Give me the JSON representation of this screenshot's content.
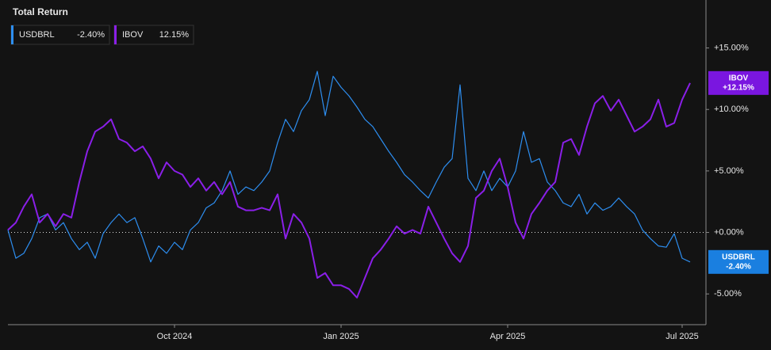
{
  "chart_data": {
    "type": "line",
    "title": "Total Return",
    "categories": [
      null,
      null,
      null,
      null,
      null,
      null,
      null,
      null,
      null,
      null,
      null,
      null,
      null,
      null,
      null,
      null,
      null,
      null,
      null,
      null,
      null,
      "Oct 2024",
      null,
      null,
      null,
      null,
      null,
      null,
      null,
      null,
      null,
      null,
      null,
      null,
      null,
      null,
      null,
      null,
      null,
      null,
      null,
      null,
      "Jan 2025",
      null,
      null,
      null,
      null,
      null,
      null,
      null,
      null,
      null,
      null,
      null,
      null,
      null,
      null,
      null,
      null,
      null,
      null,
      null,
      null,
      "Apr 2025",
      null,
      null,
      null,
      null,
      null,
      null,
      null,
      null,
      null,
      null,
      null,
      null,
      null,
      null,
      null,
      null,
      null,
      null,
      null,
      null,
      null,
      "Jul 2025",
      null
    ],
    "series": [
      {
        "name": "USDBRL",
        "color": "#2d8ef0",
        "tag_color": "#1a7fe0",
        "legend_label": "-2.40%",
        "tag_label": "-2.40%",
        "values": [
          0.2,
          -2.1,
          -1.7,
          -0.5,
          1.2,
          1.5,
          0.2,
          0.8,
          -0.5,
          -1.4,
          -0.8,
          -2.1,
          -0.1,
          0.8,
          1.5,
          0.8,
          1.2,
          -0.5,
          -2.4,
          -1.1,
          -1.7,
          -0.8,
          -1.4,
          0.2,
          0.8,
          2.0,
          2.4,
          3.4,
          5.0,
          3.1,
          3.7,
          3.4,
          4.1,
          5.0,
          7.3,
          9.2,
          8.2,
          9.9,
          10.8,
          13.1,
          9.5,
          12.7,
          11.8,
          11.1,
          10.2,
          9.2,
          8.6,
          7.6,
          6.6,
          5.7,
          4.7,
          4.1,
          3.4,
          2.8,
          4.1,
          5.3,
          6.0,
          12.0,
          4.4,
          3.4,
          5.0,
          3.4,
          4.4,
          3.7,
          5.0,
          8.2,
          5.7,
          6.0,
          4.1,
          3.4,
          2.4,
          2.1,
          3.1,
          1.5,
          2.4,
          1.8,
          2.1,
          2.8,
          2.1,
          1.5,
          0.2,
          -0.5,
          -1.1,
          -1.2,
          -0.1,
          -2.1,
          -2.4
        ]
      },
      {
        "name": "IBOV",
        "color": "#8a1fe8",
        "tag_color": "#7a16e0",
        "legend_label": "12.15%",
        "tag_label": "+12.15%",
        "values": [
          0.2,
          0.8,
          2.1,
          3.1,
          0.8,
          1.5,
          0.5,
          1.5,
          1.2,
          4.1,
          6.6,
          8.2,
          8.6,
          9.2,
          7.6,
          7.3,
          6.6,
          7.0,
          6.0,
          4.4,
          5.7,
          5.0,
          4.7,
          3.7,
          4.4,
          3.4,
          4.1,
          3.1,
          4.1,
          2.1,
          1.8,
          1.8,
          2.0,
          1.8,
          3.1,
          -0.5,
          1.5,
          0.8,
          -0.5,
          -3.7,
          -3.3,
          -4.3,
          -4.3,
          -4.6,
          -5.3,
          -3.7,
          -2.1,
          -1.4,
          -0.5,
          0.5,
          -0.1,
          0.2,
          -0.1,
          2.1,
          0.8,
          -0.5,
          -1.7,
          -2.4,
          -1.1,
          2.8,
          3.4,
          5.0,
          6.0,
          3.7,
          0.8,
          -0.5,
          1.5,
          2.4,
          3.4,
          4.1,
          7.3,
          7.6,
          6.3,
          8.6,
          10.5,
          11.1,
          9.9,
          10.8,
          9.5,
          8.2,
          8.6,
          9.2,
          10.8,
          8.6,
          8.9,
          10.8,
          12.15
        ]
      }
    ],
    "ylim": [
      -7.5,
      18.9
    ],
    "yticks": [
      {
        "value": -5,
        "label": "-5.00%"
      },
      {
        "value": 0,
        "label": "+0.00%"
      },
      {
        "value": 5,
        "label": "+5.00%"
      },
      {
        "value": 10,
        "label": "+10.00%"
      },
      {
        "value": 15,
        "label": "+15.00%"
      }
    ]
  }
}
